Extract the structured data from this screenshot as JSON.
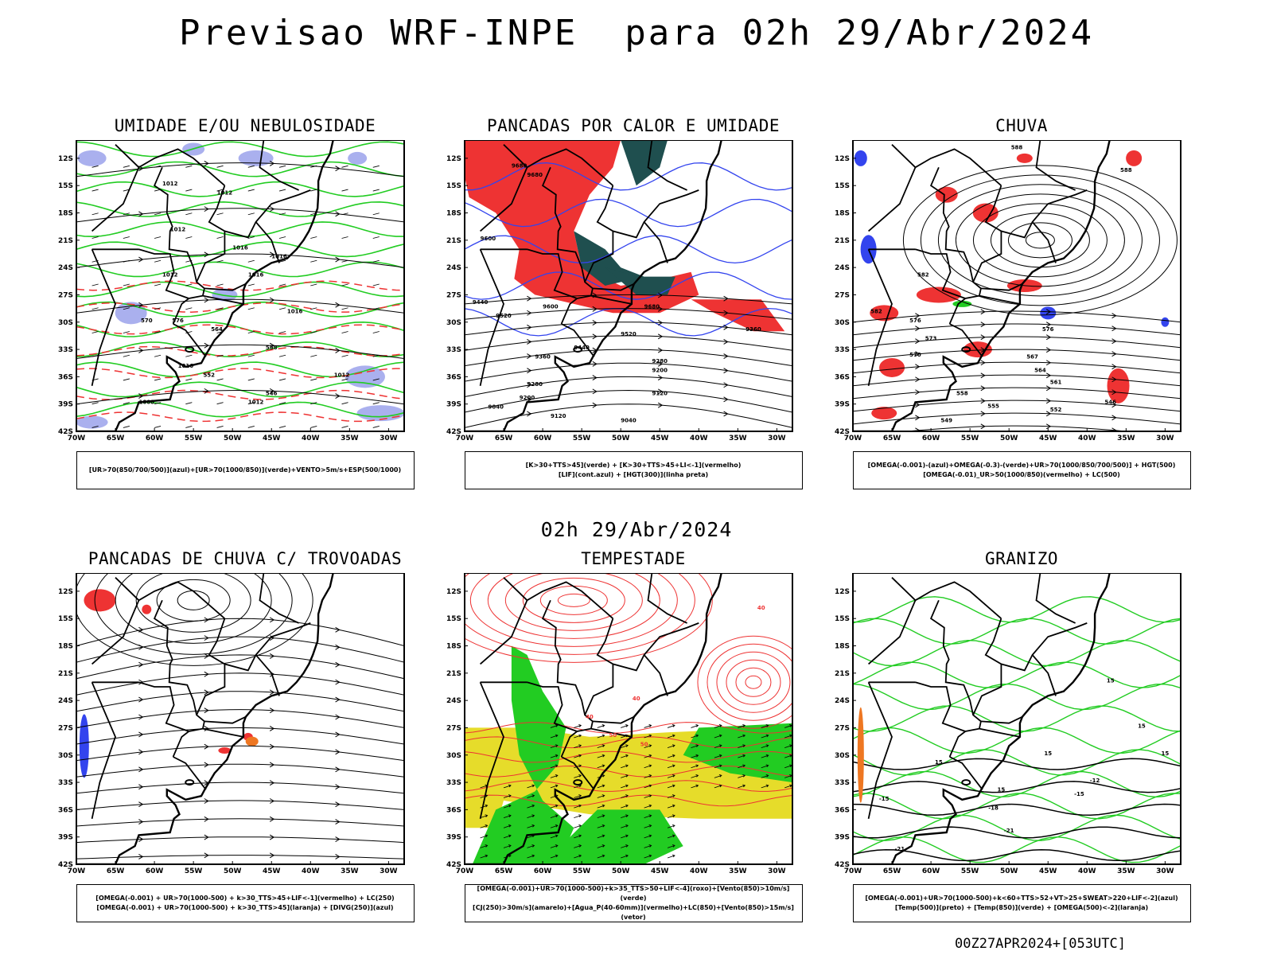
{
  "header": {
    "title": "Previsao WRF-INPE  para 02h 29/Abr/2024",
    "mid_title": "02h 29/Abr/2024",
    "footer": "00Z27APR2024+[053UTC]"
  },
  "axes": {
    "lat_labels": [
      "12S",
      "15S",
      "18S",
      "21S",
      "24S",
      "27S",
      "30S",
      "33S",
      "36S",
      "39S",
      "42S"
    ],
    "lon_labels": [
      "70W",
      "65W",
      "60W",
      "55W",
      "50W",
      "45W",
      "40W",
      "35W",
      "30W"
    ]
  },
  "colors": {
    "green": "#22cc22",
    "red": "#ee3333",
    "blue": "#3344ee",
    "lavender": "#aab0ee",
    "dark_teal": "#1f4f4f",
    "yellow": "#e6dc2a",
    "orange": "#ee7722"
  },
  "panels": [
    {
      "id": "umidade",
      "title": "UMIDADE E/OU NEBULOSIDADE",
      "legend": [
        "[UR>70(850/700/500)](azul)+[UR>70(1000/850)](verde)+VENTO>5m/s+ESP(500/1000)"
      ],
      "labels": [
        "1012",
        "1012",
        "1012",
        "1016",
        "1012",
        "1016",
        "1016",
        "1016",
        "1012",
        "576",
        "570",
        "564",
        "558",
        "552",
        "546",
        "1012",
        "1008",
        "1016"
      ]
    },
    {
      "id": "pancadas-calor",
      "title": "PANCADAS POR CALOR E UMIDADE",
      "legend": [
        "[K>30+TTS>45](verde) + [K>30+TTS>45+LI<-1](vermelho)",
        "[LIF](cont.azul) + [HGT(300)](linha preta)"
      ],
      "labels": [
        "9680",
        "9680",
        "9600",
        "9520",
        "9520",
        "9440",
        "9440",
        "9360",
        "9360",
        "9280",
        "9280",
        "9200",
        "9200",
        "9120",
        "9120",
        "9040",
        "9040",
        "9600",
        "9680"
      ]
    },
    {
      "id": "chuva",
      "title": "CHUVA",
      "legend": [
        "[OMEGA(-0.001)-(azul)+OMEGA(-0.3)-(verde)+UR>70(1000/850/700/500)] + HGT(500)",
        "[OMEGA(-0.01)_UR>50(1000/850)(vermelho) + LC(500)"
      ],
      "labels": [
        "588",
        "588",
        "582",
        "582",
        "576",
        "576",
        "573",
        "570",
        "567",
        "564",
        "561",
        "558",
        "555",
        "552",
        "549",
        "546"
      ]
    },
    {
      "id": "trovoadas",
      "title": "PANCADAS DE CHUVA C/ TROVOADAS",
      "legend": [
        "[OMEGA(-0.001) + UR>70(1000-500) + k>30_TTS>45+LIF<-1](vermelho) + LC(250)",
        "[OMEGA(-0.001) + UR>70(1000-500) + k>30_TTS>45](laranja) + [DIVG(250)](azul)"
      ],
      "labels": []
    },
    {
      "id": "tempestade",
      "title": "TEMPESTADE",
      "legend": [
        "[OMEGA(-0.001)+UR>70(1000-500)+k>35_TTS>50+LIF<-4](roxo)+[Vento(850)>10m/s](verde)",
        "[CJ(250)>30m/s](amarelo)+[Agua_P(40-60mm)](vermelho)+LC(850)+[Vento(850)>15m/s](vetor)"
      ],
      "labels": [
        "40",
        "40",
        "40",
        "50",
        "50"
      ]
    },
    {
      "id": "granizo",
      "title": "GRANIZO",
      "legend": [
        "[OMEGA(-0.001)+UR>70(1000-500)+k<60+TTS>52+VT>25+SWEAT>220+LIF<-2](azul)",
        "[Temp(500)](preto) + [Temp(850)](verde) + [OMEGA(500)<-2](laranja)"
      ],
      "labels": [
        "15",
        "15",
        "15",
        "15",
        "15",
        "15",
        "-12",
        "-15",
        "-15",
        "-18",
        "-21",
        "-21"
      ]
    }
  ]
}
